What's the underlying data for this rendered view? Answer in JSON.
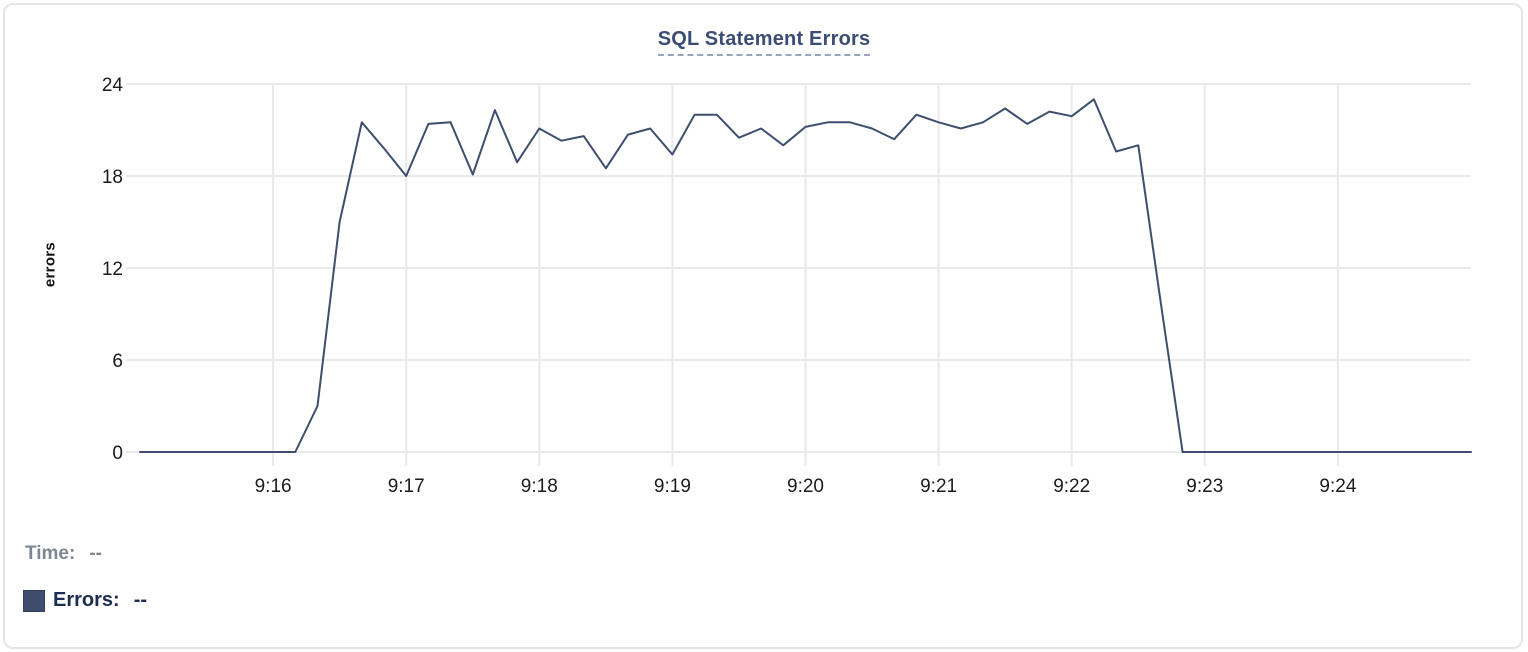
{
  "chart_data": {
    "type": "line",
    "title": "SQL Statement Errors",
    "xlabel": "",
    "ylabel": "errors",
    "grid": true,
    "ylim": [
      0,
      24
    ],
    "y_ticks": [
      0,
      6,
      12,
      18,
      24
    ],
    "x_tick_labels": [
      "9:16",
      "9:17",
      "9:18",
      "9:19",
      "9:20",
      "9:21",
      "9:22",
      "9:23",
      "9:24"
    ],
    "x_start": "9:15:00",
    "x_end": "9:25:00",
    "sample_interval_seconds": 10,
    "x": [
      "9:15:00",
      "9:15:10",
      "9:15:20",
      "9:15:30",
      "9:15:40",
      "9:15:50",
      "9:16:00",
      "9:16:10",
      "9:16:20",
      "9:16:30",
      "9:16:40",
      "9:16:50",
      "9:17:00",
      "9:17:10",
      "9:17:20",
      "9:17:30",
      "9:17:40",
      "9:17:50",
      "9:18:00",
      "9:18:10",
      "9:18:20",
      "9:18:30",
      "9:18:40",
      "9:18:50",
      "9:19:00",
      "9:19:10",
      "9:19:20",
      "9:19:30",
      "9:19:40",
      "9:19:50",
      "9:20:00",
      "9:20:10",
      "9:20:20",
      "9:20:30",
      "9:20:40",
      "9:20:50",
      "9:21:00",
      "9:21:10",
      "9:21:20",
      "9:21:30",
      "9:21:40",
      "9:21:50",
      "9:22:00",
      "9:22:10",
      "9:22:20",
      "9:22:30",
      "9:22:40",
      "9:22:50",
      "9:23:00",
      "9:23:10",
      "9:23:20",
      "9:23:30",
      "9:23:40",
      "9:23:50",
      "9:24:00",
      "9:24:10",
      "9:24:20",
      "9:24:30",
      "9:24:40",
      "9:24:50",
      "9:25:00"
    ],
    "series": [
      {
        "name": "Errors",
        "color": "#3e4e6e",
        "values": [
          0,
          0,
          0,
          0,
          0,
          0,
          0,
          0,
          3,
          15,
          21.5,
          19.8,
          18,
          21.4,
          21.5,
          18.1,
          22.3,
          18.9,
          21.1,
          20.3,
          20.6,
          18.5,
          20.7,
          21.1,
          19.4,
          22,
          22,
          20.5,
          21.1,
          20,
          21.2,
          21.5,
          21.5,
          21.1,
          20.4,
          22,
          21.5,
          21.1,
          21.5,
          22.4,
          21.4,
          22.2,
          21.9,
          23,
          19.6,
          20,
          9.9,
          0,
          0,
          0,
          0,
          0,
          0,
          0,
          0,
          0,
          0,
          0,
          0,
          0,
          0
        ]
      }
    ],
    "legend_position": "bottom-left"
  },
  "legend": {
    "time_label": "Time:",
    "time_value": "--",
    "errors_label": "Errors:",
    "errors_value": "--",
    "swatch_color": "#3e4d6c"
  },
  "colors": {
    "line": "#3e4e6e",
    "title": "#3b4d73",
    "gridline": "#e8e9eb",
    "tick_text": "#1b1b1b",
    "time_text": "#7d8693",
    "errors_text": "#1d2c51",
    "card_border": "#e5e6ea"
  }
}
